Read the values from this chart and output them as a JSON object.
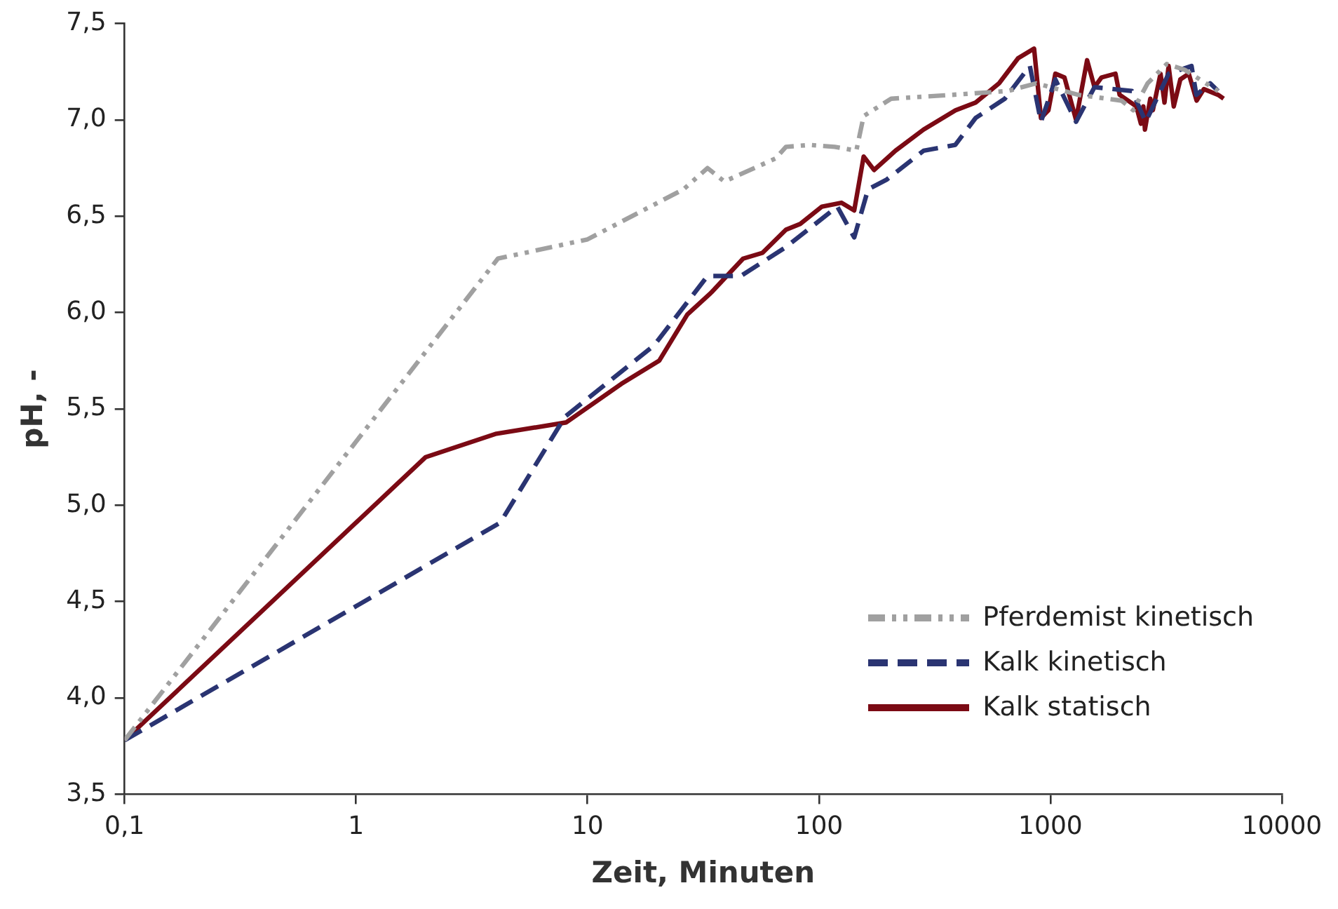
{
  "chart_data": {
    "type": "line",
    "xlabel": "Zeit, Minuten",
    "ylabel": "pH, -",
    "log": "x",
    "grid": false,
    "legend": "bottom right",
    "marker": "none",
    "xlim": [
      0.1,
      10000
    ],
    "xticks": [
      {
        "value": 0.1,
        "label": "0,1"
      },
      1,
      10,
      100,
      1000,
      10000
    ],
    "ylim": [
      3.5,
      7.5
    ],
    "yticks": [
      {
        "value": 3.5,
        "label": "3,5"
      },
      {
        "value": 4,
        "label": "4,0"
      },
      {
        "value": 4.5,
        "label": "4,5"
      },
      {
        "value": 5,
        "label": "5,0"
      },
      {
        "value": 5.5,
        "label": "5,5"
      },
      {
        "value": 6,
        "label": "6,0"
      },
      {
        "value": 6.5,
        "label": "6,5"
      },
      {
        "value": 7,
        "label": "7,0"
      },
      {
        "value": 7.5,
        "label": "7,5"
      }
    ],
    "series": [
      {
        "name": "Pferdemist kinetisch",
        "color": "#a0a0a0",
        "line_style": "dotted",
        "x": [
          0.1,
          4.1,
          10,
          26,
          33,
          39,
          65,
          72,
          91,
          117,
          145,
          156,
          205,
          375,
          655,
          870,
          1320,
          2030,
          2280,
          2630,
          3180,
          3800,
          5300
        ],
        "values": [
          3.78,
          6.28,
          6.38,
          6.64,
          6.75,
          6.68,
          6.8,
          6.86,
          6.87,
          6.86,
          6.84,
          7.02,
          7.11,
          7.13,
          7.15,
          7.19,
          7.13,
          7.1,
          7.05,
          7.19,
          7.29,
          7.26,
          7.15
        ]
      },
      {
        "name": "Kalk kinetisch",
        "color": "#2a3472",
        "line_style": "dashed",
        "x": [
          0.1,
          4.2,
          8,
          19.4,
          33,
          46,
          72,
          120,
          142,
          163,
          196,
          283,
          388,
          475,
          635,
          815,
          910,
          1050,
          1290,
          1550,
          2250,
          2580,
          3240,
          4070,
          4270,
          4900,
          5300
        ],
        "values": [
          3.78,
          4.91,
          5.46,
          5.83,
          6.19,
          6.19,
          6.34,
          6.55,
          6.39,
          6.64,
          6.69,
          6.84,
          6.87,
          7.01,
          7.11,
          7.28,
          6.99,
          7.21,
          6.99,
          7.17,
          7.15,
          6.99,
          7.24,
          7.28,
          7.13,
          7.19,
          7.15
        ]
      },
      {
        "name": "Kalk statisch",
        "color": "#7b0a14",
        "line_style": "solid",
        "x": [
          0.1,
          2,
          4,
          8.1,
          14,
          20.4,
          27,
          34,
          47,
          57,
          72,
          83,
          103,
          125,
          142,
          156,
          173,
          214,
          283,
          389,
          475,
          600,
          725,
          850,
          910,
          980,
          1050,
          1150,
          1290,
          1440,
          1550,
          1660,
          1910,
          1990,
          2350,
          2460,
          2520,
          2560,
          2700,
          2770,
          2990,
          3110,
          3240,
          3410,
          3640,
          3960,
          4280,
          4600,
          5300,
          5600
        ],
        "values": [
          3.78,
          5.25,
          5.37,
          5.43,
          5.63,
          5.75,
          5.99,
          6.1,
          6.28,
          6.31,
          6.43,
          6.46,
          6.55,
          6.57,
          6.53,
          6.81,
          6.74,
          6.84,
          6.95,
          7.05,
          7.09,
          7.19,
          7.32,
          7.37,
          7.01,
          7.05,
          7.24,
          7.22,
          7.0,
          7.31,
          7.17,
          7.22,
          7.24,
          7.13,
          7.07,
          6.98,
          7.07,
          6.95,
          7.11,
          7.05,
          7.24,
          7.09,
          7.28,
          7.07,
          7.21,
          7.24,
          7.1,
          7.16,
          7.13,
          7.11
        ]
      }
    ]
  }
}
